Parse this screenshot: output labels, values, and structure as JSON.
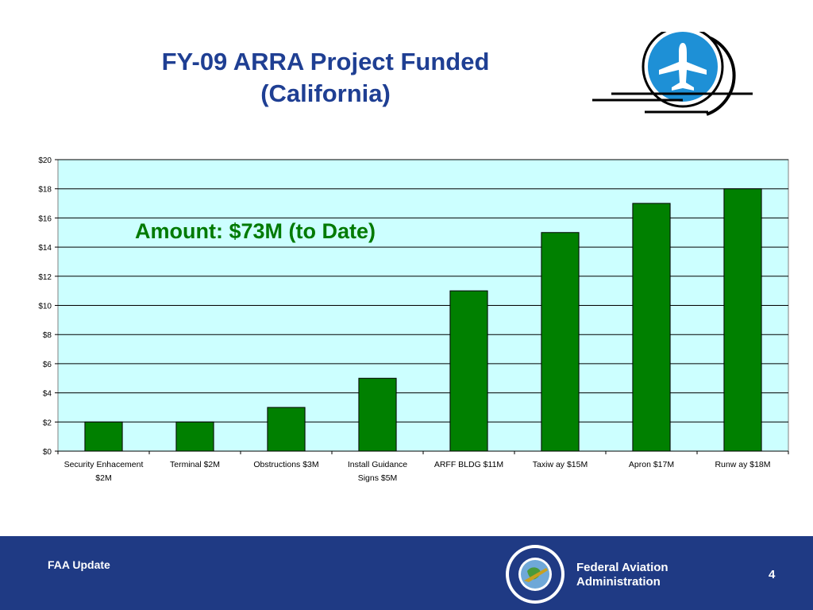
{
  "slide": {
    "title_line1": "FY-09 ARRA Project Funded",
    "title_line2": "(California)",
    "annotation": "Amount: $73M (to Date)"
  },
  "footer": {
    "left_text": "FAA Update",
    "agency_line1": "Federal Aviation",
    "agency_line2": "Administration",
    "page_number": "4",
    "background_color": "#1f3a84",
    "seal_text": "FEDERAL AVIATION ADMINISTRATION"
  },
  "colors": {
    "title": "#1f3f93",
    "plot_background": "#ccffff",
    "bar_fill": "#008000",
    "annotation": "#007a00",
    "logo_blue": "#1e90d6"
  },
  "chart_data": {
    "type": "bar",
    "categories": [
      [
        "Security Enhacement",
        "$2M"
      ],
      [
        "Terminal $2M"
      ],
      [
        "Obstructions $3M"
      ],
      [
        "Install Guidance",
        "Signs $5M"
      ],
      [
        "ARFF BLDG $11M"
      ],
      [
        "Taxiw ay $15M"
      ],
      [
        "Apron $17M"
      ],
      [
        "Runw ay $18M"
      ]
    ],
    "values": [
      2,
      2,
      3,
      5,
      11,
      15,
      17,
      18
    ],
    "ylim": [
      0,
      20
    ],
    "yticks": [
      0,
      2,
      4,
      6,
      8,
      10,
      12,
      14,
      16,
      18,
      20
    ],
    "ytick_labels": [
      "$0",
      "$2",
      "$4",
      "$6",
      "$8",
      "$10",
      "$12",
      "$14",
      "$16",
      "$18",
      "$20"
    ],
    "title": "",
    "xlabel": "",
    "ylabel": "",
    "grid": true,
    "legend": "none"
  }
}
